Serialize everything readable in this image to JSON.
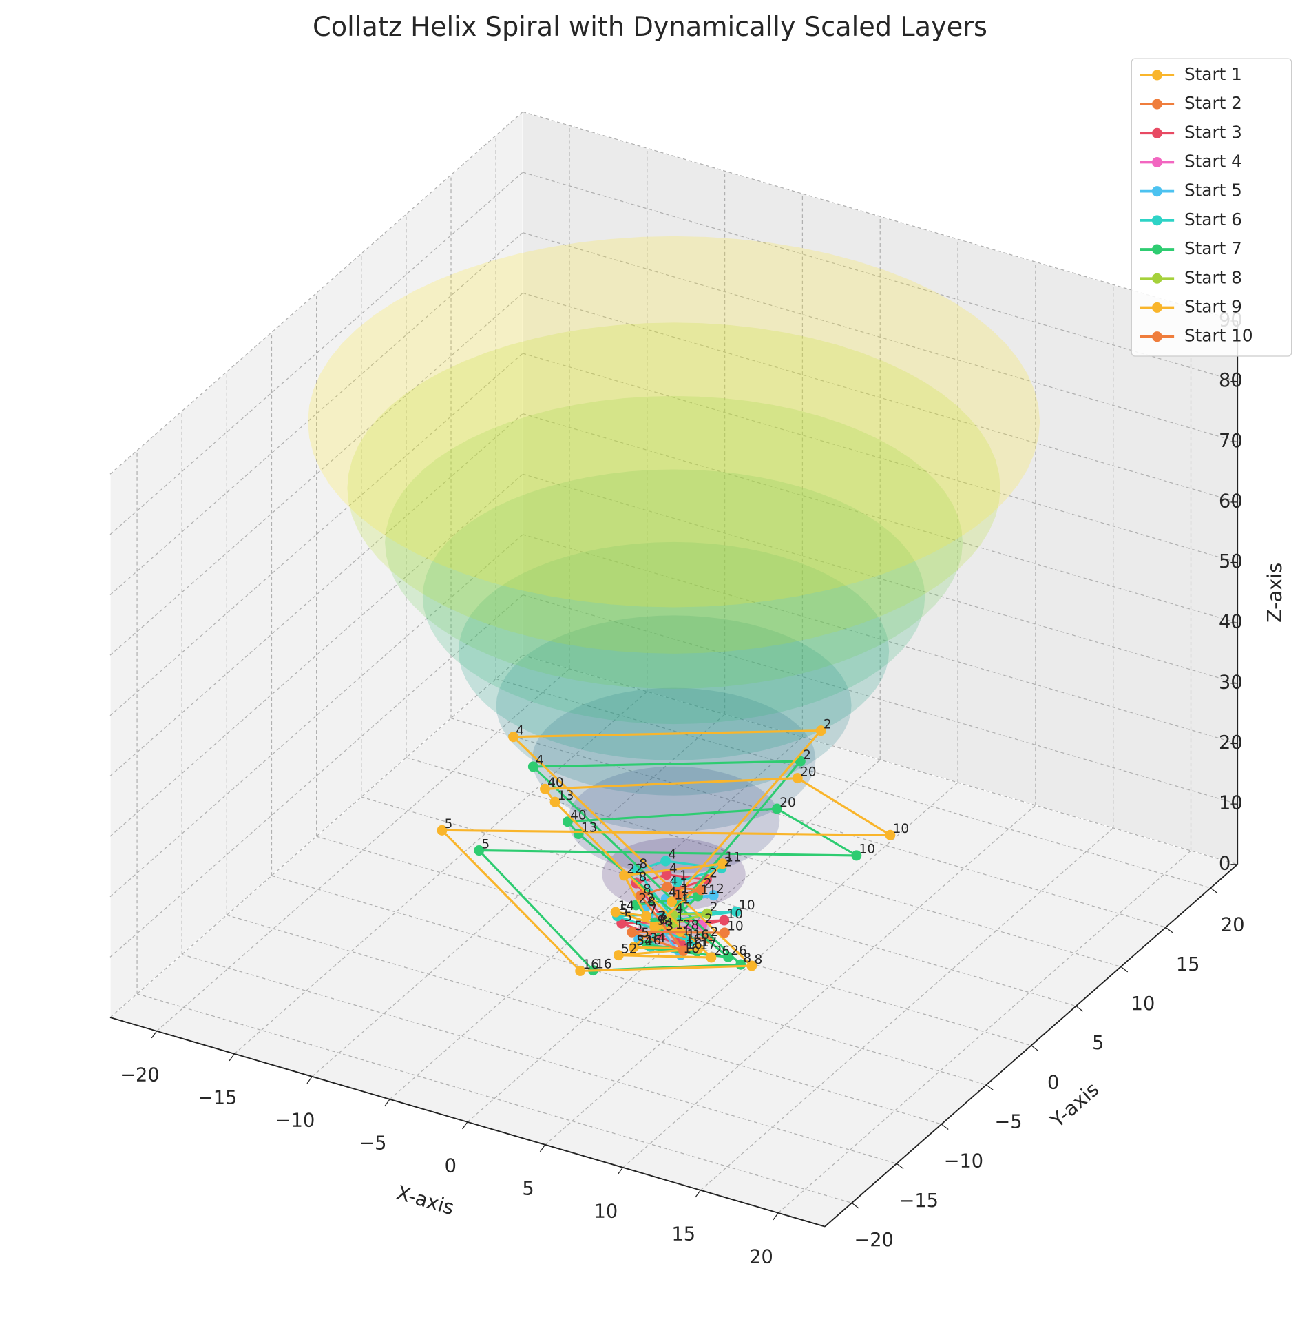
{
  "chart_data": {
    "type": "line3d",
    "title": "Collatz Helix Spiral with Dynamically Scaled Layers",
    "x_label": "X-axis",
    "y_label": "Y-axis",
    "z_label": "Z-axis",
    "xlim": [
      -23,
      23
    ],
    "ylim": [
      -23,
      23
    ],
    "zlim": [
      0,
      90
    ],
    "xticks": [
      {
        "value": -20,
        "label": "−20"
      },
      {
        "value": -15,
        "label": "−15"
      },
      {
        "value": -10,
        "label": "−10"
      },
      {
        "value": -5,
        "label": "−5"
      },
      0,
      5,
      10,
      15,
      20
    ],
    "yticks": [
      {
        "value": -20,
        "label": "−20"
      },
      {
        "value": -15,
        "label": "−15"
      },
      {
        "value": -10,
        "label": "−10"
      },
      {
        "value": -5,
        "label": "−5"
      },
      0,
      5,
      10,
      15,
      20
    ],
    "zticks": [
      0,
      10,
      20,
      30,
      40,
      50,
      60,
      70,
      80,
      90
    ],
    "grid": true,
    "legend": "upper right",
    "layers": {
      "z": [
        2,
        11,
        20,
        30,
        39,
        48,
        57,
        66,
        75,
        86
      ],
      "radius": [
        2,
        4,
        5.9,
        7.9,
        9.9,
        12,
        14,
        16.1,
        18.2,
        20.4
      ],
      "colors": [
        "#440154",
        "#482878",
        "#3e4989",
        "#31688e",
        "#26828e",
        "#1f9e89",
        "#35b779",
        "#6ece58",
        "#b5de2b",
        "#fde725"
      ],
      "alpha": 0.22
    },
    "series": [
      {
        "name": "Start 1",
        "color": "#f9b52b",
        "x": [
          0.5
        ],
        "y": [
          0.3
        ],
        "z": [
          0
        ],
        "point_labels": [
          1
        ]
      },
      {
        "name": "Start 2",
        "color": "#ef7d3c",
        "x": [
          1.5,
          0.6
        ],
        "y": [
          1.2,
          -0.4
        ],
        "z": [
          0,
          1.5
        ],
        "point_labels": [
          2,
          1
        ]
      },
      {
        "name": "Start 3",
        "color": "#e84a63",
        "x": [
          -1.0,
          1.8,
          -2.5,
          2.2,
          -3.0,
          -1.5,
          1.2,
          0.8
        ],
        "y": [
          0.5,
          2.5,
          -1.5,
          -2.8,
          1.0,
          1.8,
          1.6,
          -1.0
        ],
        "z": [
          0,
          1.5,
          3,
          4.5,
          6,
          7.5,
          9,
          10.5
        ],
        "point_labels": [
          3,
          10,
          5,
          16,
          8,
          4,
          2,
          1
        ]
      },
      {
        "name": "Start 4",
        "color": "#f266c0",
        "x": [
          -1.2,
          1.0,
          0.4
        ],
        "y": [
          0.8,
          1.4,
          -0.8
        ],
        "z": [
          0,
          1.5,
          3
        ],
        "point_labels": [
          4,
          2,
          1
        ]
      },
      {
        "name": "Start 5",
        "color": "#4cc2f0",
        "x": [
          -1.8,
          1.6,
          -2.2,
          -1.2,
          1.4,
          0.6
        ],
        "y": [
          -0.8,
          -2.0,
          0.6,
          1.2,
          2.0,
          -0.6
        ],
        "z": [
          0,
          1.5,
          3,
          4.5,
          6,
          7.5
        ],
        "point_labels": [
          5,
          16,
          8,
          4,
          2,
          1
        ]
      },
      {
        "name": "Start 6",
        "color": "#2ed3c6",
        "x": [
          -0.8,
          -1.4,
          2.4,
          -2.6,
          2.8,
          -3.2,
          -1.8,
          1.8,
          0.9
        ],
        "y": [
          -1.2,
          0.4,
          2.8,
          -1.8,
          -3.0,
          1.4,
          2.2,
          2.2,
          -1.2
        ],
        "z": [
          0,
          1.5,
          3,
          4.5,
          6,
          7.5,
          9,
          10.5,
          12
        ],
        "point_labels": [
          6,
          3,
          10,
          5,
          16,
          8,
          4,
          2,
          1
        ]
      },
      {
        "name": "Start 7",
        "color": "#2ecc71",
        "x": [
          -1.9,
          -3.3,
          -0.3,
          0.4,
          3.7,
          0.9,
          6.5,
          -7.0,
          -7.7,
          2.2,
          9.1,
          -8.9,
          3.7,
          11.0,
          -9.4,
          3.7,
          6.3
        ],
        "y": [
          1.2,
          1.5,
          3.2,
          -3.7,
          -3.8,
          -6.0,
          -5.2,
          1.5,
          1.5,
          7.7,
          4.6,
          -6.3,
          -15.4,
          -11.6,
          0.6,
          7.7,
          -10.3
        ],
        "z": [
          0,
          1.5,
          3,
          4.5,
          6,
          7.5,
          9,
          10.5,
          12,
          13.5,
          15,
          16.5,
          18,
          19.5,
          21,
          22.5,
          24
        ],
        "point_labels": [
          7,
          22,
          11,
          34,
          17,
          52,
          26,
          13,
          40,
          20,
          10,
          5,
          16,
          8,
          4,
          2,
          1
        ]
      },
      {
        "name": "Start 8",
        "color": "#a5d13b",
        "x": [
          -1.6,
          -1.0,
          1.1,
          0.5
        ],
        "y": [
          0.9,
          1.6,
          1.8,
          -0.9
        ],
        "z": [
          0,
          1.5,
          3,
          4.5
        ],
        "point_labels": [
          8,
          4,
          2,
          1
        ]
      },
      {
        "name": "Start 9",
        "color": "#f9b52b",
        "x": [
          -1.7,
          0.3,
          -3.4,
          -1.2,
          -4.0,
          0.6,
          1.4,
          5.1,
          2.1,
          7.2,
          -8.4,
          -9.1,
          3.0,
          11.1,
          -10.3,
          4.6,
          13.1,
          -10.5,
          4.5,
          7.2
        ],
        "y": [
          0.8,
          0.2,
          -0.6,
          -1.0,
          1.4,
          4.4,
          -6.9,
          -6.1,
          -9.8,
          -8.3,
          1.3,
          1.4,
          8.6,
          4.9,
          -8.0,
          -18.4,
          -14.0,
          0.3,
          8.6,
          -12.7
        ],
        "z": [
          0,
          1.5,
          3,
          4.5,
          6,
          7.5,
          9,
          10.5,
          12,
          13.5,
          15,
          16.5,
          18,
          19.5,
          21,
          22.5,
          24,
          25.5,
          27,
          28.5
        ],
        "point_labels": [
          9,
          28,
          14,
          7,
          22,
          11,
          34,
          17,
          52,
          26,
          13,
          40,
          20,
          10,
          5,
          16,
          8,
          4,
          2,
          1
        ]
      },
      {
        "name": "Start 10",
        "color": "#ef7d3c",
        "x": [
          2.0,
          -2.0,
          2.0,
          -2.6,
          -1.3,
          1.0,
          0.7
        ],
        "y": [
          2.2,
          -1.2,
          -2.4,
          0.8,
          1.5,
          1.3,
          -0.7
        ],
        "z": [
          0,
          1.5,
          3,
          4.5,
          6,
          7.5,
          9
        ],
        "point_labels": [
          10,
          5,
          16,
          8,
          4,
          2,
          1
        ]
      }
    ]
  }
}
